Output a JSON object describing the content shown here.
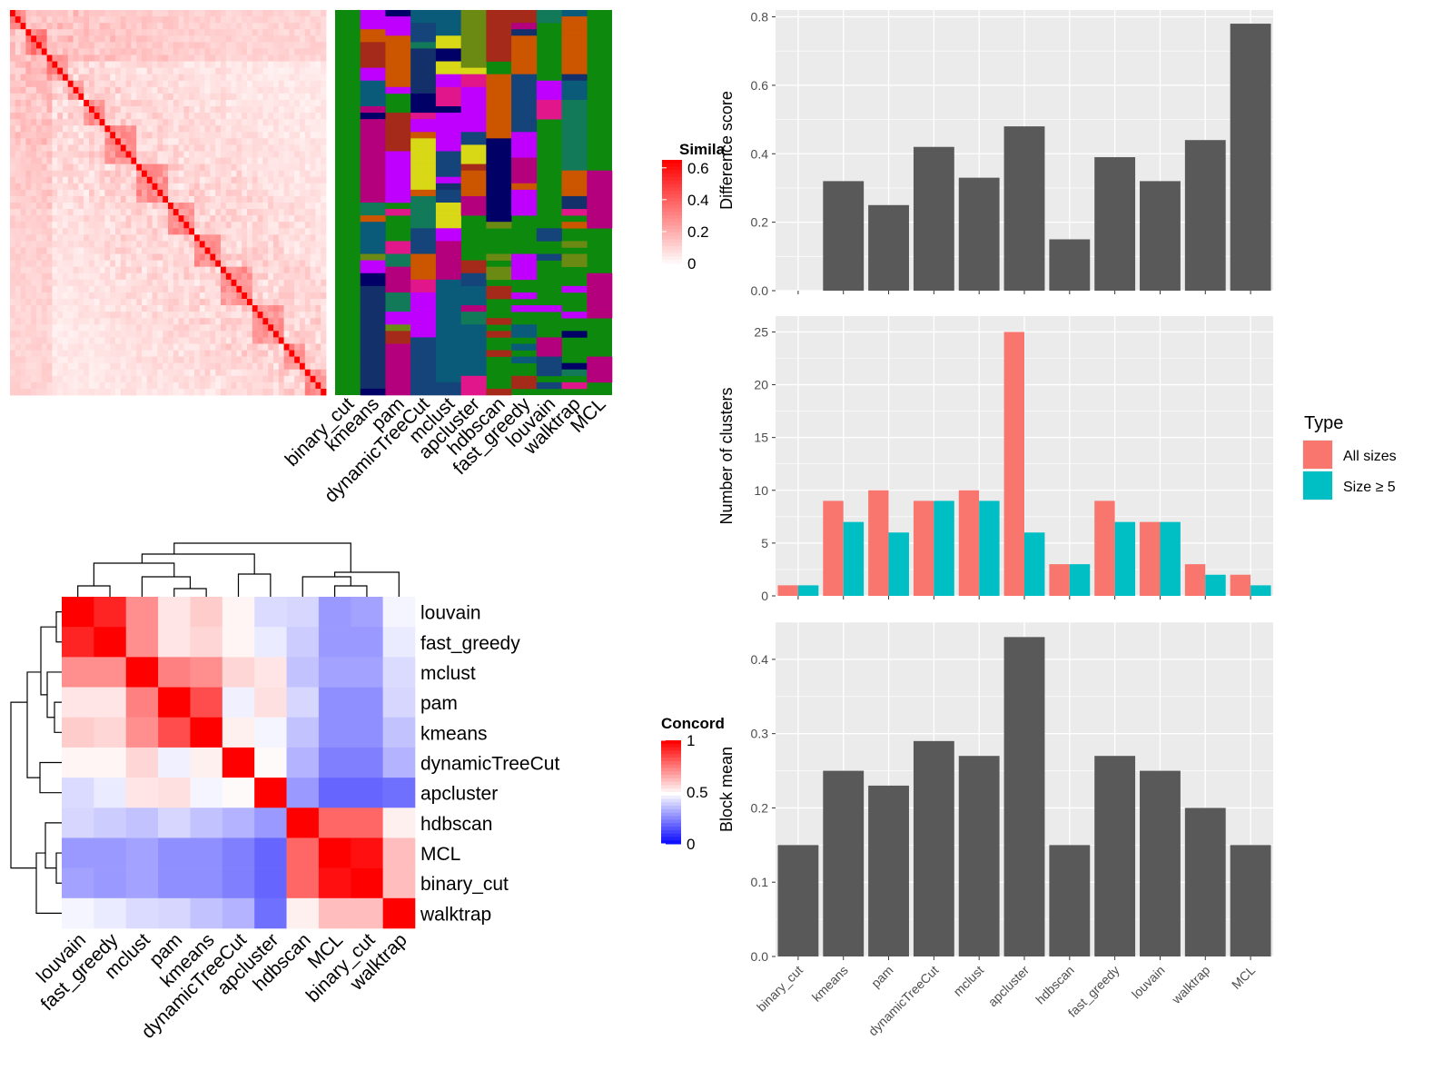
{
  "colors": {
    "panel_bg": "#ebebeb",
    "grid": "#ffffff",
    "bar_dark": "#595959",
    "all_sizes": "#f8766d",
    "size_ge5": "#00bfc4",
    "heat_low": "#ffffff",
    "heat_high": "#ff0000",
    "conc_low": "#0000ff",
    "conc_mid": "#ffffff",
    "conc_high": "#ff0000",
    "assign_bg": "#0d8a0d"
  },
  "methods": [
    "binary_cut",
    "kmeans",
    "pam",
    "dynamicTreeCut",
    "mclust",
    "apcluster",
    "hdbscan",
    "fast_greedy",
    "louvain",
    "walktrap",
    "MCL"
  ],
  "similarity_heatmap": {
    "legend_title": "Simila",
    "legend_ticks": [
      "0.6",
      "0.4",
      "0.2",
      "0"
    ],
    "legend_values": [
      0.6,
      0.4,
      0.2,
      0
    ]
  },
  "concordance": {
    "legend_title": "Concord",
    "legend_ticks": [
      "1",
      "0.5",
      "0"
    ],
    "legend_values": [
      1,
      0.5,
      0
    ],
    "order": [
      "louvain",
      "fast_greedy",
      "mclust",
      "pam",
      "kmeans",
      "dynamicTreeCut",
      "apcluster",
      "hdbscan",
      "MCL",
      "binary_cut",
      "walktrap"
    ]
  },
  "chart_data": [
    {
      "type": "bar",
      "categories": [
        "binary_cut",
        "kmeans",
        "pam",
        "dynamicTreeCut",
        "mclust",
        "apcluster",
        "hdbscan",
        "fast_greedy",
        "louvain",
        "walktrap",
        "MCL"
      ],
      "values": [
        0.0,
        0.32,
        0.25,
        0.42,
        0.33,
        0.48,
        0.15,
        0.39,
        0.32,
        0.44,
        0.78
      ],
      "title": "",
      "xlabel": "",
      "ylabel": "Difference score",
      "ylim": [
        0,
        0.82
      ],
      "yticks": [
        "0.0",
        "0.2",
        "0.4",
        "0.6",
        "0.8"
      ],
      "ytick_values": [
        0,
        0.2,
        0.4,
        0.6,
        0.8
      ]
    },
    {
      "type": "bar",
      "categories": [
        "binary_cut",
        "kmeans",
        "pam",
        "dynamicTreeCut",
        "mclust",
        "apcluster",
        "hdbscan",
        "fast_greedy",
        "louvain",
        "walktrap",
        "MCL"
      ],
      "series": [
        {
          "name": "All sizes",
          "values": [
            1,
            9,
            10,
            9,
            10,
            25,
            3,
            9,
            7,
            3,
            2
          ]
        },
        {
          "name": "Size ≥ 5",
          "values": [
            1,
            7,
            6,
            9,
            9,
            6,
            3,
            7,
            7,
            2,
            1
          ]
        }
      ],
      "title": "",
      "xlabel": "",
      "ylabel": "Number of clusters",
      "ylim": [
        0,
        26.5
      ],
      "yticks": [
        "0",
        "5",
        "10",
        "15",
        "20",
        "25"
      ],
      "ytick_values": [
        0,
        5,
        10,
        15,
        20,
        25
      ],
      "legend_title": "Type",
      "legend_position": "right"
    },
    {
      "type": "bar",
      "categories": [
        "binary_cut",
        "kmeans",
        "pam",
        "dynamicTreeCut",
        "mclust",
        "apcluster",
        "hdbscan",
        "fast_greedy",
        "louvain",
        "walktrap",
        "MCL"
      ],
      "values": [
        0.15,
        0.25,
        0.23,
        0.29,
        0.27,
        0.43,
        0.15,
        0.27,
        0.25,
        0.2,
        0.15
      ],
      "title": "",
      "xlabel": "",
      "ylabel": "Block mean",
      "ylim": [
        0,
        0.45
      ],
      "yticks": [
        "0.0",
        "0.1",
        "0.2",
        "0.3",
        "0.4"
      ],
      "ytick_values": [
        0,
        0.1,
        0.2,
        0.3,
        0.4
      ]
    }
  ]
}
